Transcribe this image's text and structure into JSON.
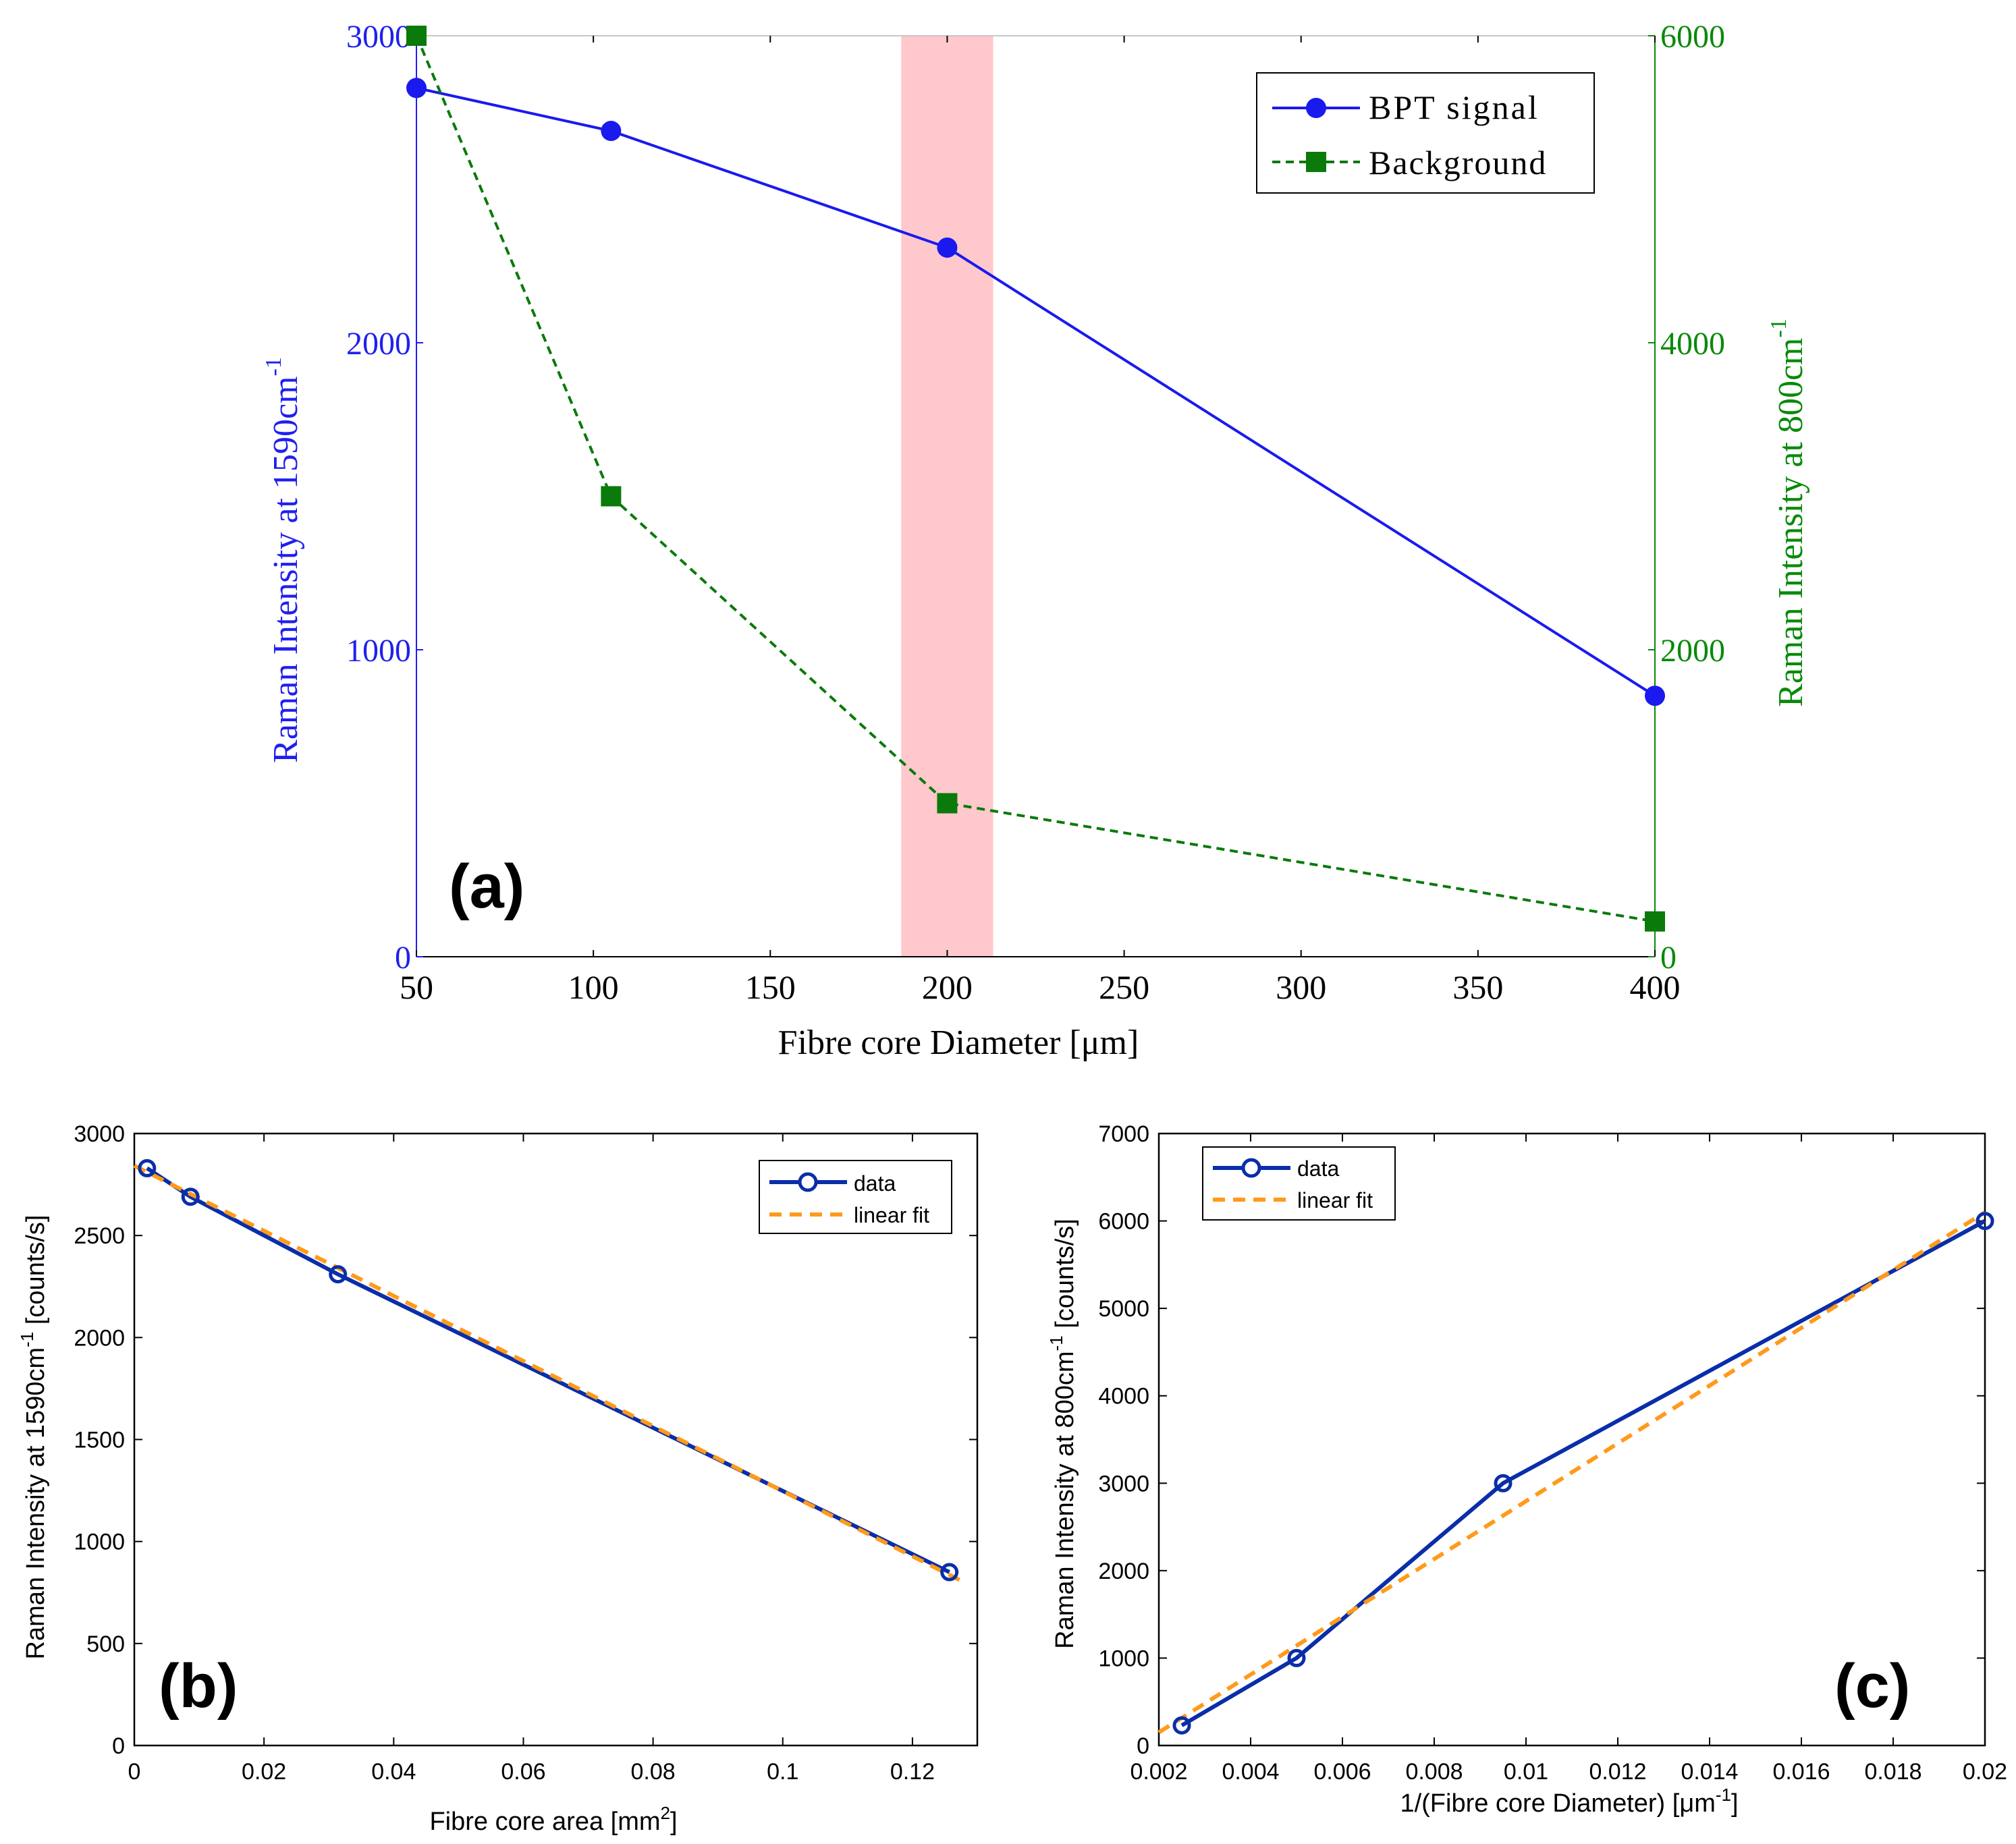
{
  "chart_data": [
    {
      "id": "a",
      "type": "line",
      "panel_label": "(a)",
      "xlabel": "Fibre core Diameter [μm]",
      "ylabel_left": "Raman Intensity at 1590cm",
      "ylabel_left_sup": "-1",
      "ylabel_right": "Raman Intensity at 800cm",
      "ylabel_right_sup": "-1",
      "xtick_values": [
        50,
        100,
        150,
        200,
        250,
        300,
        350,
        400
      ],
      "xtick_labels": [
        "50",
        "100",
        "150",
        "200",
        "250",
        "300",
        "350",
        "400"
      ],
      "xlim": [
        50,
        400
      ],
      "ylim_left": [
        0,
        3000
      ],
      "ylim_right": [
        0,
        6000
      ],
      "ytick_left": [
        "0",
        "1000",
        "2000",
        "3000"
      ],
      "ytick_left_values": [
        0,
        1000,
        2000,
        3000
      ],
      "ytick_right": [
        "0",
        "2000",
        "4000",
        "6000"
      ],
      "ytick_right_values": [
        0,
        2000,
        4000,
        6000
      ],
      "highlight_band": [
        187,
        213
      ],
      "left_axis_color": "#1f1ff0",
      "right_axis_color": "#0a8a0a",
      "band_color": "#ffc8cc",
      "legend": [
        "BPT signal",
        "Background"
      ],
      "series": [
        {
          "name": "BPT signal",
          "axis": "left",
          "color": "#1a1aee",
          "marker": "circle",
          "style": "solid",
          "x": [
            50,
            105,
            200,
            400
          ],
          "y": [
            2830,
            2690,
            2310,
            850
          ]
        },
        {
          "name": "Background",
          "axis": "right",
          "color": "#0a7a0a",
          "marker": "square",
          "style": "dashed",
          "x": [
            50,
            105,
            200,
            400
          ],
          "y": [
            6000,
            3000,
            1000,
            230
          ]
        }
      ]
    },
    {
      "id": "b",
      "type": "line",
      "panel_label": "(b)",
      "xlabel": "Fibre core area [mm",
      "xlabel_sup": "2",
      "xlabel_end": "]",
      "ylabel": "Raman Intensity at 1590cm",
      "ylabel_sup": "-1",
      "ylabel_end": " [counts/s]",
      "xlim": [
        0,
        0.13
      ],
      "ylim": [
        0,
        3000
      ],
      "xtick_values": [
        0,
        0.02,
        0.04,
        0.06,
        0.08,
        0.1,
        0.12
      ],
      "xtick_labels": [
        "0",
        "0.02",
        "0.04",
        "0.06",
        "0.08",
        "0.1",
        "0.12"
      ],
      "ytick_values": [
        0,
        500,
        1000,
        1500,
        2000,
        2500,
        3000
      ],
      "ytick_labels": [
        "0",
        "500",
        "1000",
        "1500",
        "2000",
        "2500",
        "3000"
      ],
      "legend": [
        "data",
        "linear fit"
      ],
      "series": [
        {
          "name": "data",
          "color": "#0a2ea8",
          "marker": "open-circle",
          "style": "solid",
          "x": [
            0.00196,
            0.00866,
            0.0314,
            0.1257
          ],
          "y": [
            2830,
            2690,
            2310,
            850
          ]
        },
        {
          "name": "linear fit",
          "color": "#ff9a1a",
          "style": "dashed",
          "x": [
            0.0,
            0.128
          ],
          "y": [
            2842,
            800
          ]
        }
      ]
    },
    {
      "id": "c",
      "type": "line",
      "panel_label": "(c)",
      "xlabel": "1/(Fibre core Diameter) [μm",
      "xlabel_sup": "-1",
      "xlabel_end": "]",
      "ylabel": "Raman Intensity at 800cm",
      "ylabel_sup": "-1",
      "ylabel_end": " [counts/s]",
      "xlim": [
        0.002,
        0.02
      ],
      "ylim": [
        0,
        7000
      ],
      "xtick_values": [
        0.002,
        0.004,
        0.006,
        0.008,
        0.01,
        0.012,
        0.014,
        0.016,
        0.018,
        0.02
      ],
      "xtick_labels": [
        "0.002",
        "0.004",
        "0.006",
        "0.008",
        "0.01",
        "0.012",
        "0.014",
        "0.016",
        "0.018",
        "0.02"
      ],
      "ytick_values": [
        0,
        1000,
        2000,
        3000,
        4000,
        5000,
        6000,
        7000
      ],
      "ytick_labels": [
        "0",
        "1000",
        "2000",
        "3000",
        "4000",
        "5000",
        "6000",
        "7000"
      ],
      "legend": [
        "data",
        "linear fit"
      ],
      "series": [
        {
          "name": "data",
          "color": "#0a2ea8",
          "marker": "open-circle",
          "style": "solid",
          "x": [
            0.0025,
            0.005,
            0.0095,
            0.02
          ],
          "y": [
            230,
            1000,
            3000,
            6000
          ]
        },
        {
          "name": "linear fit",
          "color": "#ff9a1a",
          "style": "dashed",
          "x": [
            0.002,
            0.02
          ],
          "y": [
            150,
            6100
          ]
        }
      ]
    }
  ]
}
